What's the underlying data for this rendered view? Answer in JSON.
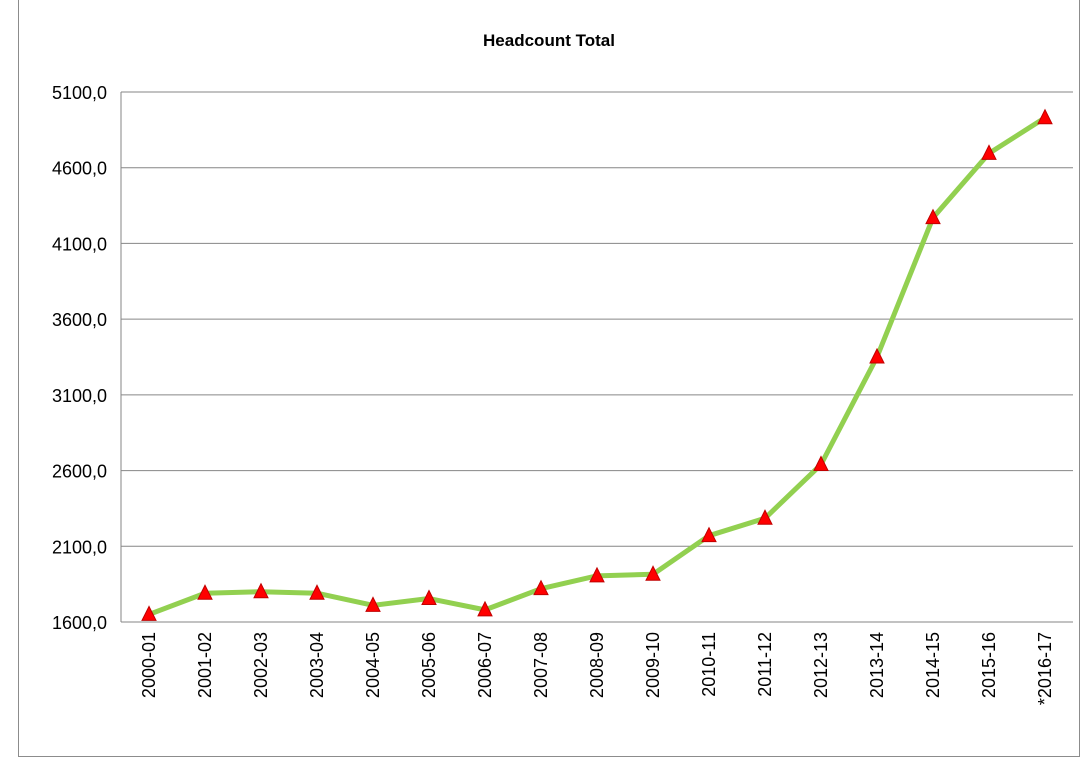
{
  "chart_data": {
    "type": "line",
    "title": "Headcount Total",
    "xlabel": "",
    "ylabel": "",
    "categories": [
      "2000-01",
      "2001-02",
      "2002-03",
      "2003-04",
      "2004-05",
      "2005-06",
      "2006-07",
      "2007-08",
      "2008-09",
      "2009-10",
      "2010-11",
      "2011-12",
      "2012-13",
      "2013-14",
      "2014-15",
      "2015-16",
      "*2016-17"
    ],
    "series": [
      {
        "values": [
          1650,
          1790,
          1800,
          1790,
          1710,
          1755,
          1680,
          1820,
          1905,
          1915,
          2170,
          2285,
          2640,
          3350,
          4270,
          4695,
          4930
        ]
      }
    ],
    "ylim": [
      1600,
      5100
    ],
    "yticks": [
      1600,
      2100,
      2600,
      3100,
      3600,
      4100,
      4600,
      5100
    ],
    "ytick_labels": [
      "1600,0",
      "2100,0",
      "2600,0",
      "3100,0",
      "3600,0",
      "4100,0",
      "4600,0",
      "5100,0"
    ],
    "grid": true,
    "legend": "none",
    "colors": {
      "line": "#92d050",
      "marker": "#ff0000",
      "marker_edge": "#c00000",
      "grid": "#868686",
      "text": "#000000"
    }
  }
}
